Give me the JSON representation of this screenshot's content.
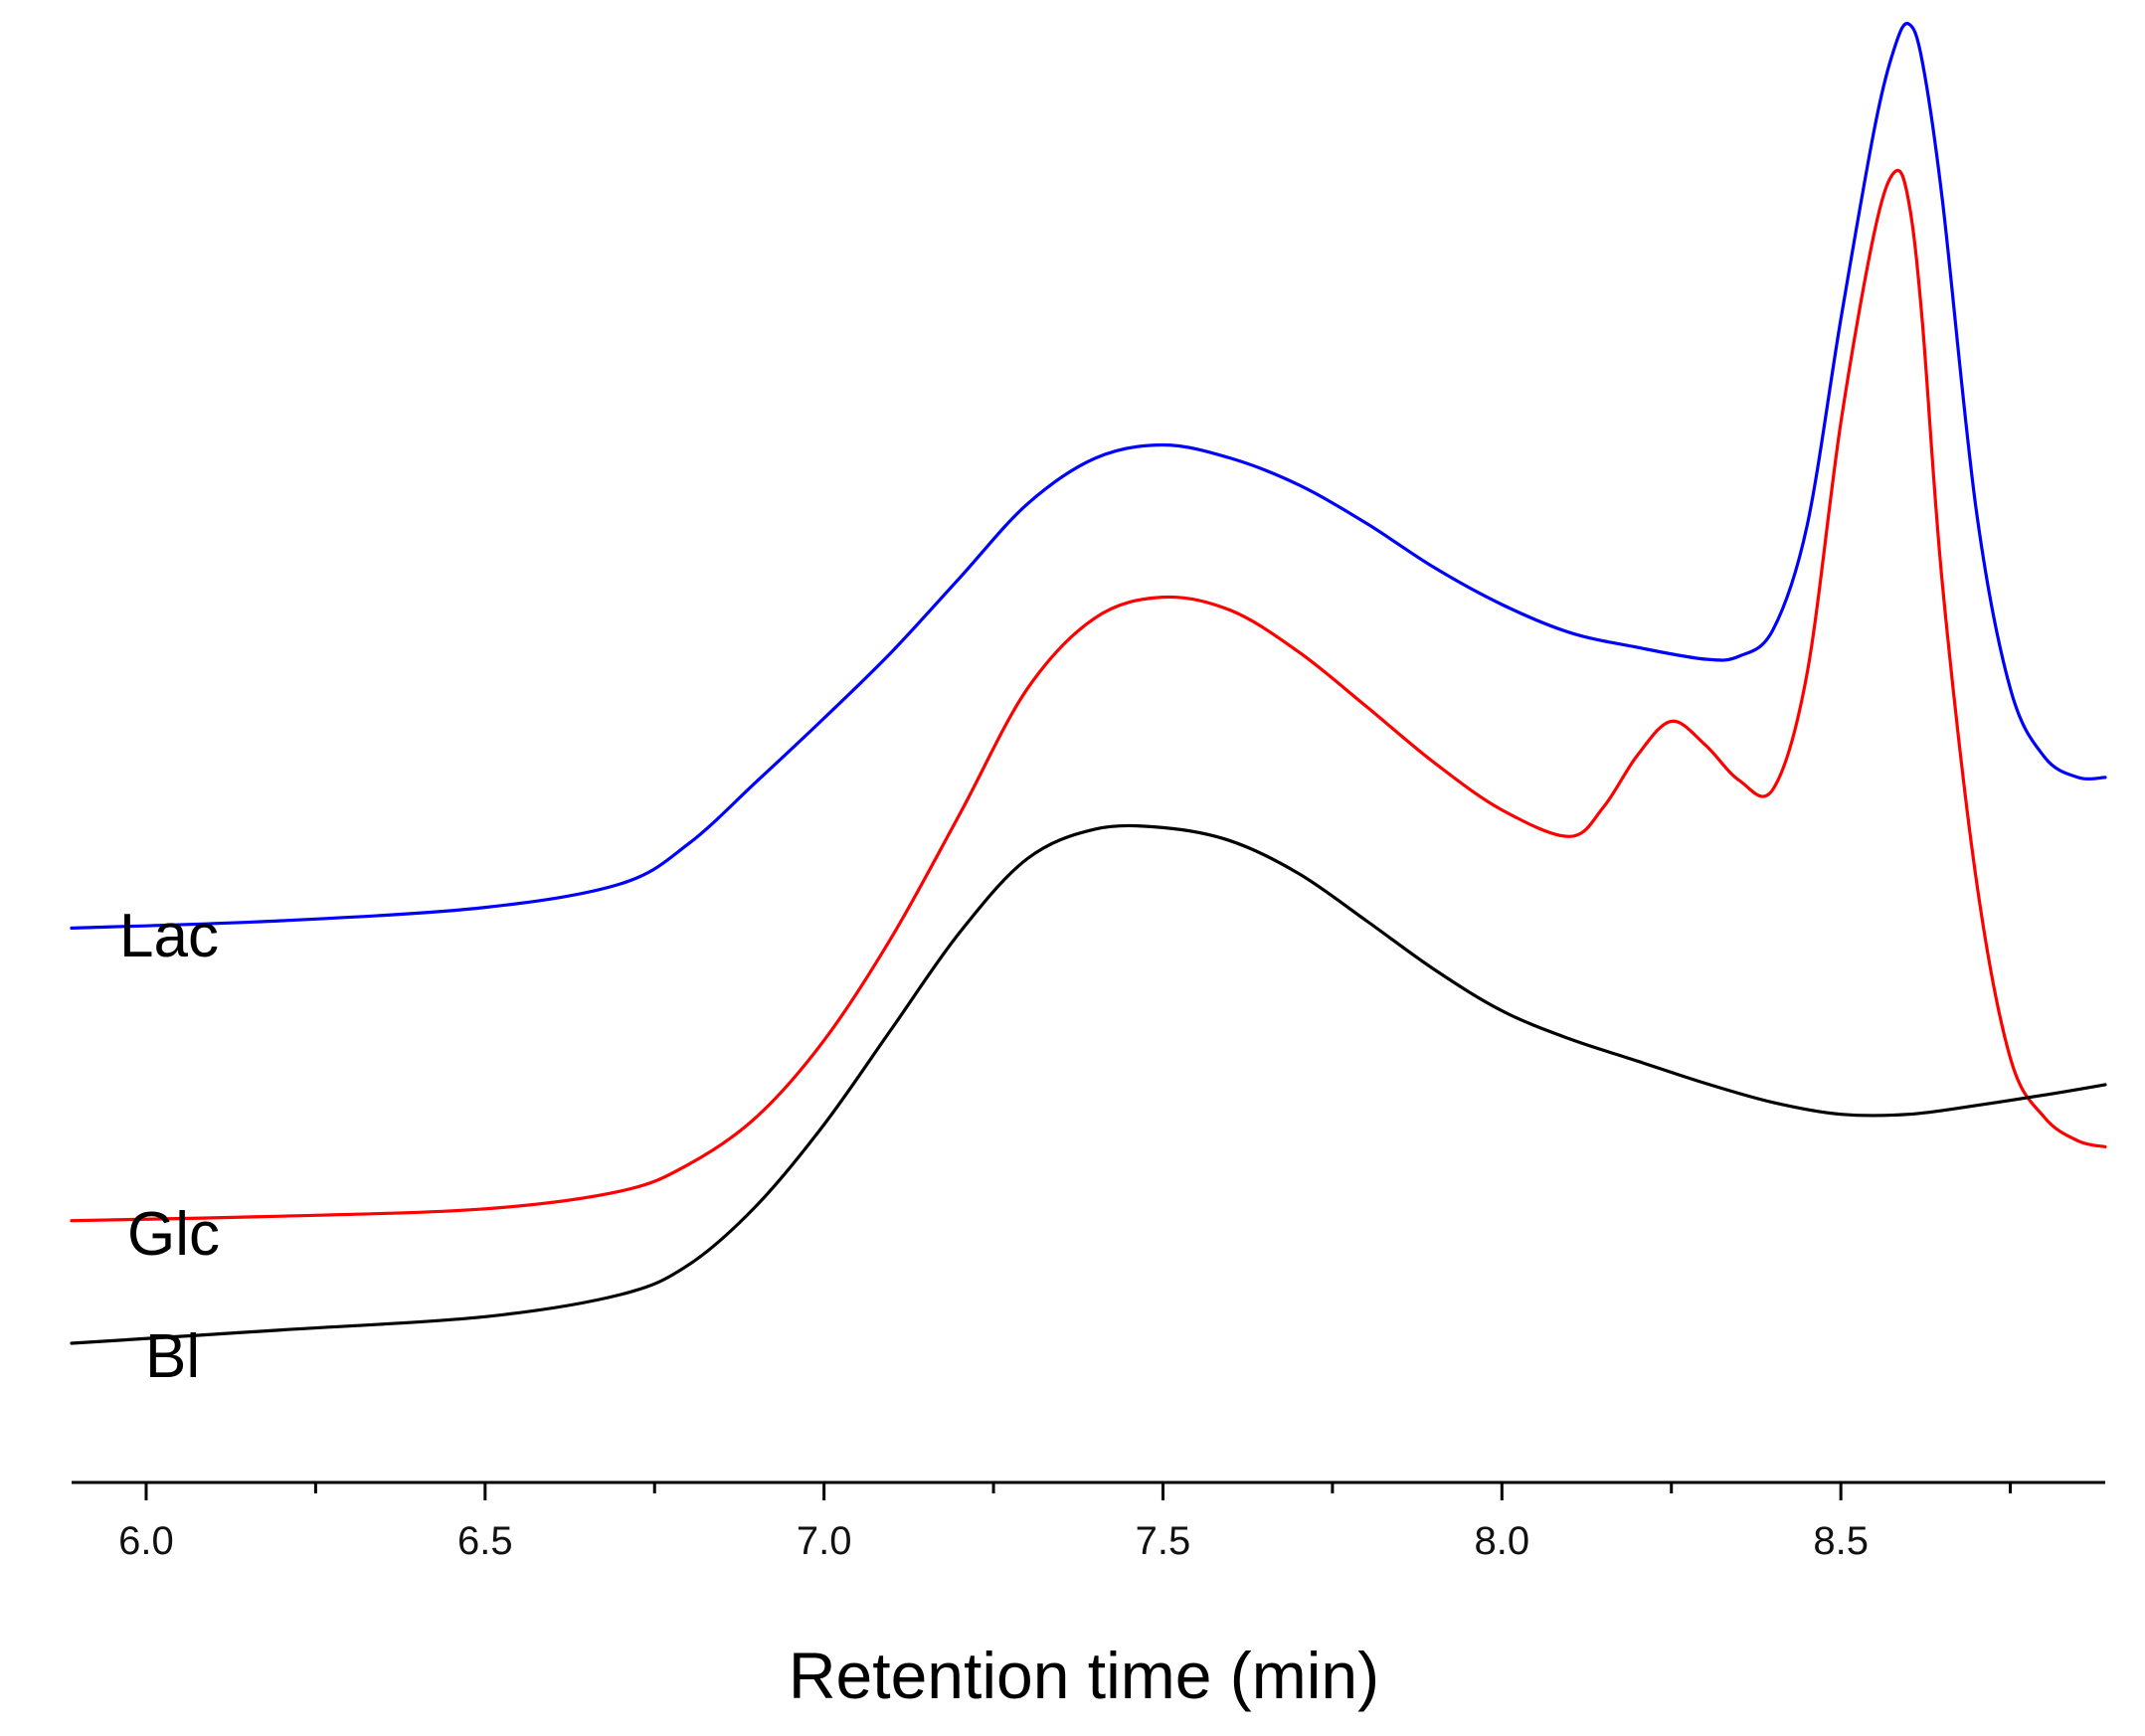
{
  "chart_data": {
    "type": "line",
    "title": "",
    "xlabel": "Retention time (min)",
    "ylabel": "",
    "xlim": [
      5.89,
      8.89
    ],
    "ylim": [
      0,
      1
    ],
    "x_major_ticks": [
      6.0,
      6.5,
      7.0,
      7.5,
      8.0,
      8.5
    ],
    "x_tick_labels": [
      "6.0",
      "6.5",
      "7.0",
      "7.5",
      "8.0",
      "8.5"
    ],
    "x_minor_ticks": [
      6.25,
      6.75,
      7.25,
      7.75,
      8.25,
      8.75
    ],
    "y_axis_visible": false,
    "grid": false,
    "legend": "labels-left-of-curves",
    "series": [
      {
        "name": "Lac",
        "color": "#0000ff",
        "x": [
          5.89,
          6.2,
          6.5,
          6.7,
          6.8,
          6.9,
          7.0,
          7.1,
          7.2,
          7.3,
          7.4,
          7.5,
          7.6,
          7.7,
          7.8,
          7.9,
          8.0,
          8.1,
          8.2,
          8.3,
          8.35,
          8.4,
          8.45,
          8.5,
          8.55,
          8.58,
          8.6,
          8.62,
          8.65,
          8.7,
          8.75,
          8.8,
          8.85,
          8.89
        ],
        "y": [
          0.388,
          0.393,
          0.402,
          0.418,
          0.445,
          0.487,
          0.53,
          0.575,
          0.625,
          0.675,
          0.706,
          0.715,
          0.706,
          0.688,
          0.662,
          0.632,
          0.607,
          0.588,
          0.578,
          0.57,
          0.572,
          0.59,
          0.66,
          0.8,
          0.93,
          0.985,
          1.0,
          0.975,
          0.88,
          0.67,
          0.55,
          0.504,
          0.49,
          0.49
        ]
      },
      {
        "name": "Glc",
        "color": "#ff0000",
        "x": [
          5.89,
          6.2,
          6.5,
          6.7,
          6.8,
          6.9,
          7.0,
          7.1,
          7.2,
          7.3,
          7.4,
          7.5,
          7.6,
          7.7,
          7.8,
          7.9,
          8.0,
          8.1,
          8.15,
          8.2,
          8.25,
          8.3,
          8.35,
          8.4,
          8.45,
          8.5,
          8.55,
          8.58,
          8.6,
          8.62,
          8.65,
          8.7,
          8.75,
          8.8,
          8.85,
          8.89
        ],
        "y": [
          0.19,
          0.193,
          0.198,
          0.21,
          0.228,
          0.26,
          0.312,
          0.382,
          0.465,
          0.55,
          0.598,
          0.612,
          0.603,
          0.575,
          0.538,
          0.5,
          0.468,
          0.45,
          0.47,
          0.505,
          0.528,
          0.512,
          0.488,
          0.482,
          0.56,
          0.73,
          0.86,
          0.9,
          0.88,
          0.8,
          0.62,
          0.42,
          0.3,
          0.26,
          0.244,
          0.24
        ]
      },
      {
        "name": "Bl",
        "color": "#000000",
        "x": [
          5.89,
          6.2,
          6.5,
          6.7,
          6.8,
          6.9,
          7.0,
          7.1,
          7.2,
          7.3,
          7.4,
          7.5,
          7.6,
          7.7,
          7.8,
          7.9,
          8.0,
          8.1,
          8.2,
          8.3,
          8.4,
          8.5,
          8.6,
          8.7,
          8.8,
          8.89
        ],
        "y": [
          0.107,
          0.116,
          0.125,
          0.14,
          0.16,
          0.2,
          0.255,
          0.32,
          0.385,
          0.435,
          0.455,
          0.456,
          0.447,
          0.425,
          0.393,
          0.36,
          0.332,
          0.313,
          0.298,
          0.283,
          0.27,
          0.262,
          0.262,
          0.268,
          0.275,
          0.282
        ]
      }
    ]
  }
}
